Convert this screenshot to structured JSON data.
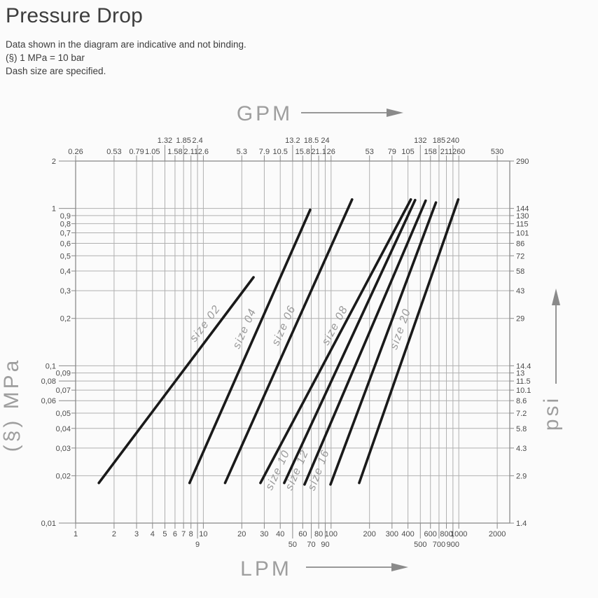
{
  "header": {
    "title": "Pressure Drop",
    "notes": [
      "Data shown in the diagram are indicative and not binding.",
      "(§) 1 MPa = 10 bar",
      "Dash size are specified."
    ]
  },
  "chart_data": {
    "type": "line",
    "x_scale": "log",
    "y_scale": "log",
    "x_range_lpm": [
      1,
      2500
    ],
    "y_range_mpa": [
      0.01,
      2
    ],
    "grid": true,
    "bottom_axis": {
      "label": "LPM",
      "tick_values": [
        1,
        2,
        3,
        4,
        5,
        6,
        7,
        8,
        9,
        10,
        20,
        30,
        40,
        50,
        60,
        70,
        80,
        90,
        100,
        200,
        300,
        400,
        500,
        600,
        700,
        800,
        900,
        1000,
        2000
      ],
      "tick_labels": [
        "1",
        "2",
        "3",
        "4",
        "5",
        "6",
        "7",
        "8",
        "9",
        "10",
        "20",
        "30",
        "40",
        "50",
        "60",
        "70",
        "80",
        "90",
        "100",
        "200",
        "300",
        "400",
        "500",
        "600",
        "700",
        "800",
        "900",
        "1000",
        "2000"
      ],
      "staggered_values": [
        9,
        50,
        70,
        90,
        500,
        700,
        900
      ]
    },
    "top_axis": {
      "label": "GPM",
      "tick_values": [
        1,
        2,
        3,
        4,
        5,
        6,
        7,
        8,
        9,
        10,
        20,
        30,
        40,
        50,
        60,
        70,
        80,
        90,
        100,
        200,
        300,
        400,
        500,
        600,
        700,
        800,
        900,
        1000,
        2000
      ],
      "tick_labels": [
        "0.26",
        "0.53",
        "0.79",
        "1.05",
        "1.32",
        "1.58",
        "1.85",
        "2.11",
        "2.4",
        "2.6",
        "5.3",
        "7.9",
        "10.5",
        "13.2",
        "15.8",
        "18.5",
        "21.1",
        "24",
        "26",
        "53",
        "79",
        "105",
        "132",
        "158",
        "185",
        "211",
        "240",
        "260",
        "530"
      ],
      "staggered_values": [
        5,
        7,
        9,
        50,
        70,
        90,
        500,
        700,
        900
      ]
    },
    "left_axis": {
      "label": "(§) MPa",
      "tick_values": [
        2,
        1,
        0.9,
        0.8,
        0.7,
        0.6,
        0.5,
        0.4,
        0.3,
        0.2,
        0.1,
        0.09,
        0.08,
        0.07,
        0.06,
        0.05,
        0.04,
        0.03,
        0.02,
        0.01
      ],
      "tick_labels": [
        "2",
        "1",
        "0,9",
        "0,8",
        "0,7",
        "0,6",
        "0,5",
        "0,4",
        "0,3",
        "0,2",
        "0,1",
        "0,09",
        "0,08",
        "0,07",
        "0,06",
        "0,05",
        "0,04",
        "0,03",
        "0,02",
        "0,01"
      ],
      "outset_values": [
        2,
        1,
        0.1,
        0.08,
        0.06,
        0.01
      ]
    },
    "right_axis": {
      "label": "psi",
      "tick_values": [
        2,
        1,
        0.9,
        0.8,
        0.7,
        0.6,
        0.5,
        0.4,
        0.3,
        0.2,
        0.1,
        0.09,
        0.08,
        0.07,
        0.06,
        0.05,
        0.04,
        0.03,
        0.02,
        0.01
      ],
      "tick_labels": [
        "290",
        "144",
        "130",
        "115",
        "101",
        "86",
        "72",
        "58",
        "43",
        "29",
        "14.4",
        "13",
        "11.5",
        "10.1",
        "8.6",
        "7.2",
        "5.8",
        "4.3",
        "2.9",
        "1.4"
      ]
    },
    "series": [
      {
        "name": "size 02",
        "points_lpm_mpa": [
          [
            1.52,
            0.018
          ],
          [
            24.7,
            0.365
          ]
        ],
        "label_at": [
          10.4,
          0.185
        ]
      },
      {
        "name": "size 04",
        "points_lpm_mpa": [
          [
            7.8,
            0.018
          ],
          [
            68.6,
            0.98
          ]
        ],
        "label_at": [
          21.2,
          0.172
        ]
      },
      {
        "name": "size 06",
        "points_lpm_mpa": [
          [
            14.8,
            0.018
          ],
          [
            146,
            1.14
          ]
        ],
        "label_at": [
          43,
          0.18
        ]
      },
      {
        "name": "size 08",
        "points_lpm_mpa": [
          [
            28,
            0.018
          ],
          [
            421,
            1.14
          ]
        ],
        "label_at": [
          108,
          0.18
        ]
      },
      {
        "name": "size 10",
        "points_lpm_mpa": [
          [
            43,
            0.018
          ],
          [
            455,
            1.13
          ]
        ],
        "label_at": [
          38.5,
          0.0217
        ]
      },
      {
        "name": "size 12",
        "points_lpm_mpa": [
          [
            62,
            0.0176
          ],
          [
            550,
            1.12
          ]
        ],
        "label_at": [
          54.5,
          0.0217
        ]
      },
      {
        "name": "size 16",
        "points_lpm_mpa": [
          [
            99,
            0.0176
          ],
          [
            662,
            1.09
          ]
        ],
        "label_at": [
          80.5,
          0.0217
        ]
      },
      {
        "name": "size 20",
        "points_lpm_mpa": [
          [
            166,
            0.018
          ],
          [
            990,
            1.14
          ]
        ],
        "label_at": [
          352,
          0.171
        ]
      }
    ],
    "colors": {
      "line": "#1a1a1a",
      "grid": "#b0b0b0",
      "axis": "#8a8a8a",
      "tick_text": "#4b4b4b",
      "secondary_text": "#9e9e9e"
    }
  }
}
